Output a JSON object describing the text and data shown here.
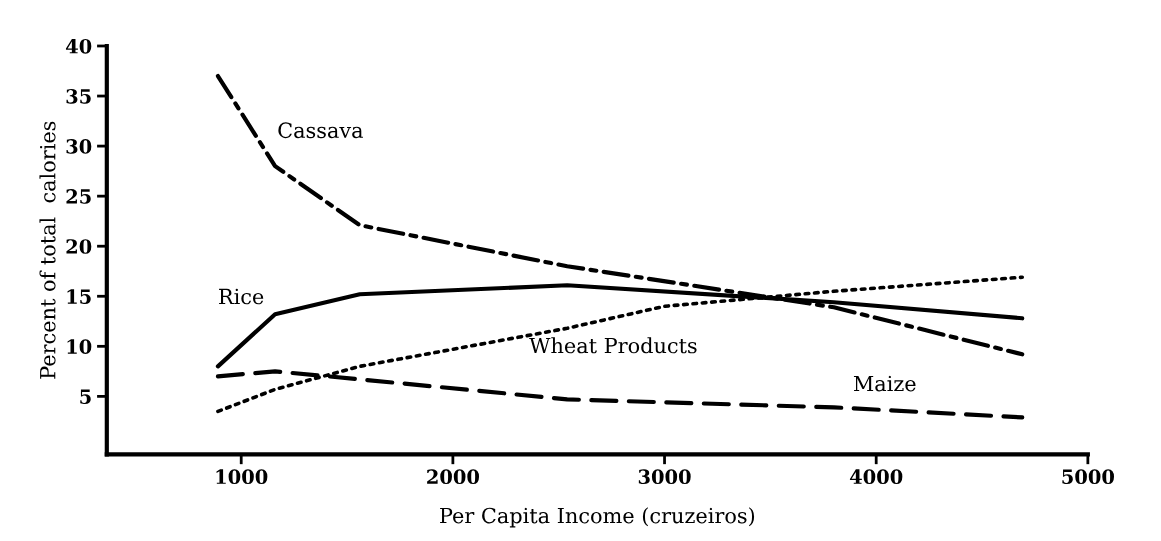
{
  "chart_data": {
    "type": "line",
    "xlabel": "Per Capita Income (cruzeiros)",
    "ylabel": "Percent of total  calories",
    "xlim": [
      365,
      5000
    ],
    "xticks": [
      1000,
      2000,
      3000,
      4000,
      5000
    ],
    "ylim": [
      -0.8,
      40
    ],
    "yticks": [
      5,
      10,
      15,
      20,
      25,
      30,
      35,
      40
    ],
    "grid": false,
    "legend": false,
    "marker": "none",
    "series": [
      {
        "name": "Cassava",
        "color": "#000000",
        "line_style": "dashdot",
        "x": [
          890,
          1160,
          1560,
          2540,
          3800,
          4690
        ],
        "values": [
          37,
          28,
          22.1,
          18,
          13.9,
          9.2
        ]
      },
      {
        "name": "Rice",
        "color": "#000000",
        "line_style": "solid",
        "x": [
          890,
          1160,
          1560,
          2540,
          3800,
          4690
        ],
        "values": [
          8,
          13.2,
          15.2,
          16.1,
          14.4,
          12.8
        ]
      },
      {
        "name": "Wheat Products",
        "color": "#000000",
        "line_style": "dotted",
        "x": [
          890,
          1160,
          1560,
          2540,
          3000,
          3800,
          4690
        ],
        "values": [
          3.5,
          5.7,
          8,
          11.8,
          14,
          15.5,
          16.9
        ]
      },
      {
        "name": "Maize",
        "color": "#000000",
        "line_style": "dashed",
        "x": [
          890,
          1160,
          1560,
          2540,
          3800,
          4690
        ],
        "values": [
          7,
          7.5,
          6.7,
          4.7,
          3.9,
          2.9
        ]
      }
    ]
  }
}
